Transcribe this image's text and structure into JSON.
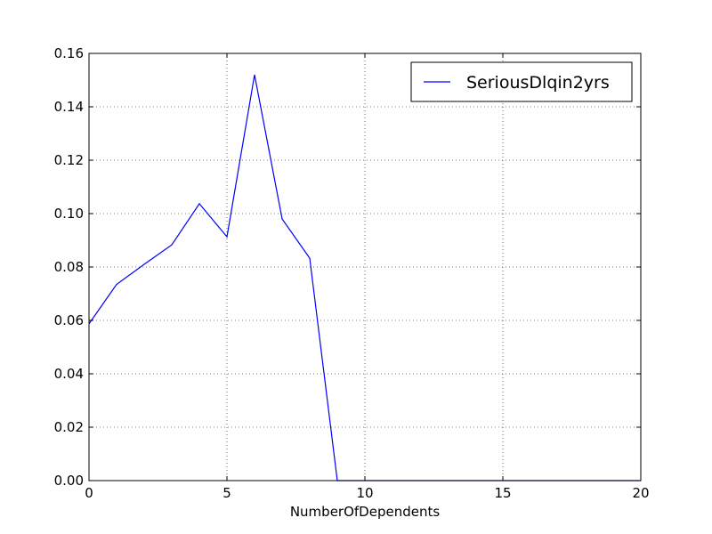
{
  "chart_data": {
    "type": "line",
    "title": "",
    "xlabel": "NumberOfDependents",
    "ylabel": "",
    "xlim": [
      0,
      20
    ],
    "ylim": [
      0,
      0.16
    ],
    "xticks": [
      "0",
      "5",
      "10",
      "15",
      "20"
    ],
    "yticks": [
      "0.00",
      "0.02",
      "0.04",
      "0.06",
      "0.08",
      "0.10",
      "0.12",
      "0.14",
      "0.16"
    ],
    "grid": true,
    "legend_position": "top-right",
    "series": [
      {
        "name": "SeriousDlqin2yrs",
        "color": "#0000ff",
        "x": [
          0,
          1,
          2,
          3,
          4,
          5,
          6,
          7,
          8,
          9,
          10,
          20
        ],
        "y": [
          0.0587,
          0.0735,
          0.081,
          0.0883,
          0.1037,
          0.0913,
          0.152,
          0.098,
          0.0833,
          0.0,
          0.0,
          0.0
        ]
      }
    ]
  }
}
